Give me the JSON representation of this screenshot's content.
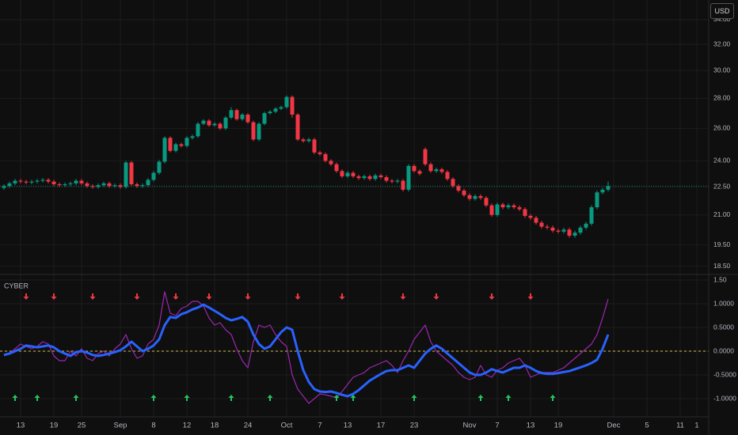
{
  "currency": "USD",
  "chart_data": [
    {
      "type": "candlestick",
      "log_scale": true,
      "grid": true,
      "up_color": "#089981",
      "down_color": "#f23645",
      "price_line_color": "#089981",
      "ylim": [
        18.2,
        35.7
      ],
      "yticks": [
        {
          "value": 18.5,
          "label": "18.50"
        },
        {
          "value": 19.5,
          "label": "19.50"
        },
        {
          "value": 21,
          "label": "21.00"
        },
        {
          "value": 22.5,
          "label": "22.50"
        },
        {
          "value": 24,
          "label": "24.00"
        },
        {
          "value": 26,
          "label": "26.00"
        },
        {
          "value": 28,
          "label": "28.00"
        },
        {
          "value": 30,
          "label": "30.00"
        },
        {
          "value": 32,
          "label": "32.00"
        },
        {
          "value": 34,
          "label": "34.00"
        }
      ],
      "open": [
        22.45,
        22.55,
        22.7,
        22.85,
        22.8,
        22.75,
        22.8,
        22.85,
        22.9,
        22.8,
        22.65,
        22.6,
        22.65,
        22.7,
        22.85,
        22.7,
        22.55,
        22.5,
        22.6,
        22.7,
        22.55,
        22.6,
        22.5,
        23.9,
        22.65,
        22.55,
        22.6,
        22.9,
        23.3,
        23.95,
        25.4,
        24.6,
        25.0,
        24.9,
        25.4,
        25.5,
        26.3,
        26.5,
        26.2,
        26.3,
        26.0,
        26.7,
        27.2,
        26.6,
        26.9,
        26.4,
        25.3,
        26.3,
        27.0,
        27.1,
        27.3,
        27.4,
        28.1,
        26.9,
        25.3,
        25.2,
        25.3,
        24.5,
        24.4,
        24.0,
        23.8,
        23.4,
        23.1,
        23.3,
        23.1,
        23.0,
        23.1,
        22.95,
        23.15,
        23.05,
        22.85,
        22.8,
        22.85,
        22.35,
        23.7,
        23.4,
        24.7,
        23.8,
        23.4,
        23.5,
        23.35,
        22.95,
        22.55,
        22.3,
        22.05,
        21.85,
        22.0,
        21.9,
        21.5,
        21.0,
        21.55,
        21.4,
        21.5,
        21.4,
        21.3,
        20.95,
        20.85,
        20.6,
        20.4,
        20.35,
        20.2,
        20.15,
        20.25,
        19.95,
        20.1,
        20.35,
        20.55,
        21.4,
        22.2,
        22.35
      ],
      "high": [
        22.65,
        22.8,
        22.95,
        22.95,
        22.9,
        22.9,
        22.95,
        23.0,
        23.0,
        22.9,
        22.75,
        22.75,
        22.8,
        22.95,
        22.95,
        22.8,
        22.65,
        22.7,
        22.8,
        22.8,
        22.7,
        22.7,
        24.0,
        24.0,
        22.75,
        22.7,
        23.0,
        23.4,
        24.05,
        25.5,
        25.5,
        25.1,
        25.1,
        25.5,
        25.6,
        26.4,
        26.6,
        26.6,
        26.4,
        26.4,
        26.8,
        27.4,
        27.3,
        27.0,
        27.0,
        26.5,
        26.4,
        27.1,
        27.2,
        27.4,
        27.5,
        28.2,
        28.2,
        27.0,
        25.4,
        25.4,
        25.4,
        24.6,
        24.5,
        24.1,
        23.9,
        23.5,
        23.4,
        23.4,
        23.2,
        23.2,
        23.2,
        23.25,
        23.25,
        23.15,
        22.95,
        22.95,
        22.95,
        23.8,
        23.8,
        23.5,
        24.8,
        23.9,
        23.6,
        23.6,
        23.45,
        23.05,
        22.65,
        22.4,
        22.15,
        22.1,
        22.1,
        22.0,
        21.6,
        21.65,
        21.65,
        21.6,
        21.6,
        21.5,
        21.4,
        21.05,
        20.95,
        20.7,
        20.5,
        20.45,
        20.3,
        20.35,
        20.35,
        20.2,
        20.45,
        20.65,
        21.5,
        22.3,
        22.45,
        22.8
      ],
      "low": [
        22.35,
        22.45,
        22.6,
        22.7,
        22.65,
        22.65,
        22.7,
        22.75,
        22.7,
        22.55,
        22.5,
        22.5,
        22.55,
        22.6,
        22.6,
        22.45,
        22.4,
        22.4,
        22.5,
        22.45,
        22.45,
        22.4,
        22.4,
        22.55,
        22.45,
        22.45,
        22.5,
        22.8,
        23.2,
        23.85,
        24.5,
        24.5,
        24.8,
        24.8,
        25.3,
        25.4,
        26.2,
        26.1,
        26.1,
        25.9,
        25.9,
        26.6,
        26.5,
        26.5,
        26.3,
        25.2,
        25.2,
        26.2,
        26.9,
        27.0,
        27.2,
        27.3,
        26.7,
        25.2,
        25.1,
        25.1,
        24.4,
        24.3,
        23.9,
        23.7,
        23.3,
        23.0,
        23.0,
        23.0,
        22.9,
        22.9,
        22.85,
        22.85,
        22.95,
        22.75,
        22.7,
        22.7,
        22.25,
        22.25,
        23.3,
        23.15,
        23.7,
        23.3,
        23.3,
        23.25,
        22.85,
        22.45,
        22.2,
        21.95,
        21.75,
        21.75,
        21.8,
        21.4,
        20.9,
        20.9,
        21.3,
        21.3,
        21.3,
        21.2,
        20.85,
        20.75,
        20.5,
        20.3,
        20.25,
        20.1,
        20.05,
        20.05,
        19.85,
        19.85,
        20.0,
        20.25,
        20.45,
        21.3,
        22.1,
        22.25
      ],
      "close": [
        22.55,
        22.7,
        22.85,
        22.8,
        22.75,
        22.8,
        22.85,
        22.9,
        22.8,
        22.65,
        22.6,
        22.65,
        22.7,
        22.85,
        22.7,
        22.55,
        22.5,
        22.6,
        22.7,
        22.55,
        22.6,
        22.5,
        23.9,
        22.65,
        22.55,
        22.6,
        22.9,
        23.3,
        23.95,
        25.4,
        24.6,
        25.0,
        24.9,
        25.4,
        25.5,
        26.3,
        26.5,
        26.2,
        26.3,
        26.0,
        26.7,
        27.2,
        26.6,
        26.9,
        26.4,
        25.3,
        26.3,
        27.0,
        27.1,
        27.3,
        27.4,
        28.1,
        26.9,
        25.3,
        25.2,
        25.3,
        24.5,
        24.4,
        24.0,
        23.8,
        23.4,
        23.1,
        23.3,
        23.1,
        23.0,
        23.1,
        22.95,
        23.15,
        23.05,
        22.85,
        22.8,
        22.85,
        22.35,
        23.7,
        23.4,
        23.25,
        23.8,
        23.4,
        23.5,
        23.35,
        22.95,
        22.55,
        22.3,
        22.05,
        21.85,
        22.0,
        21.9,
        21.5,
        21.0,
        21.55,
        21.4,
        21.5,
        21.4,
        21.3,
        20.95,
        20.85,
        20.6,
        20.4,
        20.35,
        20.2,
        20.15,
        20.25,
        19.95,
        20.1,
        20.35,
        20.55,
        21.4,
        22.2,
        22.35,
        22.55
      ]
    },
    {
      "type": "line",
      "title": "CYBER",
      "grid": true,
      "ylim": [
        -1.35,
        1.6
      ],
      "yticks": [
        {
          "value": -1,
          "label": "-1.0000"
        },
        {
          "value": -0.5,
          "label": "-0.5000"
        },
        {
          "value": 0,
          "label": "0.0000"
        },
        {
          "value": 0.5,
          "label": "0.5000"
        },
        {
          "value": 1,
          "label": "1.0000"
        },
        {
          "value": 1.5,
          "label": "1.50"
        }
      ],
      "hline": 0,
      "hline_color": "#d4c24a",
      "categories": [
        null,
        null,
        null,
        "13",
        null,
        null,
        null,
        null,
        null,
        "19",
        null,
        null,
        null,
        null,
        "25",
        null,
        null,
        null,
        null,
        null,
        null,
        "Sep",
        null,
        null,
        null,
        null,
        null,
        "8",
        null,
        null,
        null,
        null,
        null,
        "12",
        null,
        null,
        null,
        null,
        "18",
        null,
        null,
        null,
        null,
        null,
        "24",
        null,
        null,
        null,
        null,
        null,
        null,
        "Oct",
        null,
        null,
        null,
        null,
        null,
        "7",
        null,
        null,
        null,
        null,
        "13",
        null,
        null,
        null,
        null,
        null,
        "17",
        null,
        null,
        null,
        null,
        null,
        "23",
        null,
        null,
        null,
        null,
        null,
        null,
        null,
        null,
        null,
        "Nov",
        null,
        null,
        null,
        null,
        "7",
        null,
        null,
        null,
        null,
        null,
        "13",
        null,
        null,
        null,
        null,
        "19",
        null,
        null,
        null,
        null,
        null,
        null,
        null,
        null,
        null,
        "Dec",
        null,
        null,
        null,
        null,
        null,
        "5",
        null,
        null,
        null,
        null,
        null,
        "11",
        null,
        null,
        "1",
        null,
        null
      ],
      "series": [
        {
          "color": "#9c27b0",
          "width": 1.2,
          "values": [
            -0.1,
            -0.05,
            0.05,
            0.15,
            0.1,
            0.05,
            0.1,
            0.2,
            0.15,
            -0.1,
            -0.2,
            -0.2,
            0.0,
            -0.1,
            0.05,
            -0.15,
            -0.2,
            -0.05,
            0.0,
            -0.1,
            0.05,
            0.15,
            0.35,
            0.05,
            -0.15,
            -0.1,
            0.15,
            0.25,
            0.55,
            1.25,
            0.8,
            0.75,
            0.9,
            0.95,
            1.05,
            1.05,
            0.95,
            0.7,
            0.55,
            0.6,
            0.45,
            0.35,
            0.05,
            -0.2,
            -0.35,
            0.2,
            0.55,
            0.5,
            0.55,
            0.35,
            0.2,
            0.1,
            -0.5,
            -0.8,
            -0.95,
            -1.1,
            -1.0,
            -0.9,
            -0.92,
            -0.95,
            -0.98,
            -0.85,
            -0.7,
            -0.55,
            -0.5,
            -0.45,
            -0.35,
            -0.3,
            -0.25,
            -0.2,
            -0.3,
            -0.45,
            -0.2,
            0.0,
            0.25,
            0.4,
            0.55,
            0.2,
            0.0,
            -0.1,
            -0.2,
            -0.3,
            -0.45,
            -0.55,
            -0.6,
            -0.55,
            -0.3,
            -0.5,
            -0.55,
            -0.4,
            -0.35,
            -0.25,
            -0.2,
            -0.15,
            -0.3,
            -0.55,
            -0.5,
            -0.45,
            -0.45,
            -0.45,
            -0.4,
            -0.35,
            -0.25,
            -0.15,
            -0.05,
            0.05,
            0.15,
            0.35,
            0.7,
            1.1,
            null,
            null,
            null,
            null,
            null,
            null,
            null,
            null,
            null,
            null,
            null,
            null,
            null,
            null,
            null,
            null,
            null,
            null
          ]
        },
        {
          "color": "#2962ff",
          "width": 3,
          "values": [
            -0.08,
            -0.05,
            0.0,
            0.05,
            0.12,
            0.1,
            0.08,
            0.1,
            0.12,
            0.08,
            0.0,
            -0.05,
            -0.1,
            -0.02,
            0.0,
            -0.03,
            -0.08,
            -0.1,
            -0.08,
            -0.05,
            -0.02,
            0.02,
            0.1,
            0.2,
            0.1,
            0.0,
            0.05,
            0.12,
            0.25,
            0.55,
            0.72,
            0.7,
            0.78,
            0.82,
            0.88,
            0.92,
            0.98,
            0.92,
            0.85,
            0.78,
            0.7,
            0.65,
            0.68,
            0.72,
            0.62,
            0.35,
            0.15,
            0.05,
            0.1,
            0.25,
            0.4,
            0.5,
            0.45,
            0.0,
            -0.4,
            -0.65,
            -0.8,
            -0.85,
            -0.86,
            -0.85,
            -0.88,
            -0.92,
            -0.95,
            -0.9,
            -0.82,
            -0.72,
            -0.62,
            -0.55,
            -0.48,
            -0.42,
            -0.4,
            -0.4,
            -0.35,
            -0.3,
            -0.35,
            -0.2,
            -0.05,
            0.05,
            0.12,
            0.05,
            -0.05,
            -0.15,
            -0.25,
            -0.35,
            -0.45,
            -0.5,
            -0.5,
            -0.45,
            -0.38,
            -0.42,
            -0.45,
            -0.4,
            -0.35,
            -0.35,
            -0.3,
            -0.35,
            -0.42,
            -0.46,
            -0.48,
            -0.48,
            -0.46,
            -0.44,
            -0.42,
            -0.38,
            -0.34,
            -0.3,
            -0.25,
            -0.18,
            0.05,
            0.35,
            null,
            null,
            null,
            null,
            null,
            null,
            null,
            null,
            null,
            null,
            null,
            null,
            null,
            null,
            null,
            null,
            null,
            null
          ]
        }
      ],
      "sell_signals": [
        4,
        9,
        16,
        24,
        31,
        37,
        44,
        53,
        61,
        72,
        78,
        88,
        95
      ],
      "buy_signals": [
        2,
        6,
        13,
        27,
        33,
        41,
        48,
        60,
        63,
        74,
        86,
        91,
        99
      ],
      "sell_color": "#f23645",
      "buy_color": "#22c55e"
    }
  ]
}
